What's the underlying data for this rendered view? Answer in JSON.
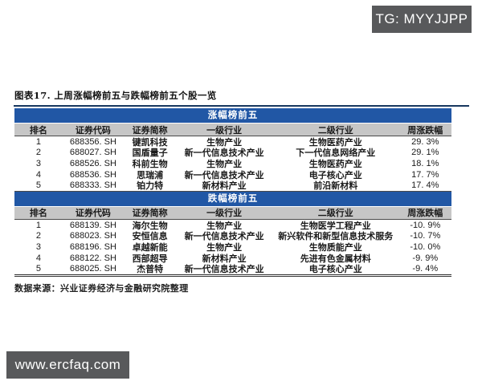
{
  "watermarks": {
    "telegram": "TG: MYYJJPP",
    "website": "www.ercfaq.com"
  },
  "figure": {
    "title": "图表17. 上周涨幅榜前五与跌幅榜前五个股一览",
    "source": "数据来源：兴业证券经济与金融研究院整理"
  },
  "table": {
    "columns": [
      "排名",
      "证券代码",
      "证券简称",
      "一级行业",
      "二级行业",
      "周涨跌幅"
    ],
    "sections": [
      {
        "band": "涨幅榜前五",
        "rows": [
          [
            "1",
            "688356. SH",
            "键凯科技",
            "生物产业",
            "生物医药产业",
            "29. 3%"
          ],
          [
            "2",
            "688027. SH",
            "国盾量子",
            "新一代信息技术产业",
            "下一代信息网络产业",
            "29. 1%"
          ],
          [
            "3",
            "688526. SH",
            "科前生物",
            "生物产业",
            "生物医药产业",
            "18. 1%"
          ],
          [
            "4",
            "688536. SH",
            "思瑞浦",
            "新一代信息技术产业",
            "电子核心产业",
            "17. 7%"
          ],
          [
            "5",
            "688333. SH",
            "铂力特",
            "新材料产业",
            "前沿新材料",
            "17. 4%"
          ]
        ]
      },
      {
        "band": "跌幅榜前五",
        "rows": [
          [
            "1",
            "688139. SH",
            "海尔生物",
            "生物产业",
            "生物医学工程产业",
            "-10. 9%"
          ],
          [
            "2",
            "688023. SH",
            "安恒信息",
            "新一代信息技术产业",
            "新兴软件和新型信息技术服务",
            "-10. 7%"
          ],
          [
            "3",
            "688196. SH",
            "卓越新能",
            "生物产业",
            "生物质能产业",
            "-10. 0%"
          ],
          [
            "4",
            "688122. SH",
            "西部超导",
            "新材料产业",
            "先进有色金属材料",
            "-9. 9%"
          ],
          [
            "5",
            "688025. SH",
            "杰普特",
            "新一代信息技术产业",
            "电子核心产业",
            "-9. 4%"
          ]
        ]
      }
    ]
  },
  "colors": {
    "band_blue": "#2157a5",
    "header_gray": "#c6c6c6",
    "badge_gray": "#58595b",
    "rule_navy": "#17375e"
  }
}
